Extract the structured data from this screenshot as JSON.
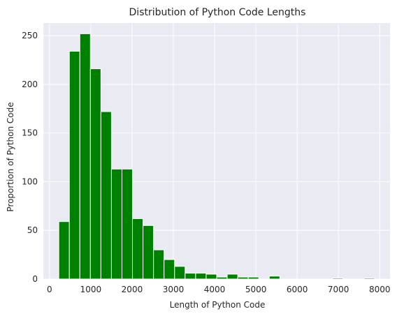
{
  "chart_data": {
    "type": "bar",
    "title": "Distribution of Python Code Lengths",
    "xlabel": "Length of Python Code",
    "ylabel": "Proportion of Python Code",
    "xlim": [
      -150,
      8250
    ],
    "ylim": [
      0,
      263
    ],
    "x_ticks": [
      0,
      1000,
      2000,
      3000,
      4000,
      5000,
      6000,
      7000,
      8000
    ],
    "y_ticks": [
      0,
      50,
      100,
      150,
      200,
      250
    ],
    "grid": true,
    "bar_color": "#008000",
    "background_color": "#eaeaf2",
    "bins": [
      {
        "x0": 225,
        "x1": 480,
        "count": 59
      },
      {
        "x0": 480,
        "x1": 735,
        "count": 234
      },
      {
        "x0": 735,
        "x1": 990,
        "count": 252
      },
      {
        "x0": 990,
        "x1": 1245,
        "count": 216
      },
      {
        "x0": 1245,
        "x1": 1500,
        "count": 172
      },
      {
        "x0": 1500,
        "x1": 1755,
        "count": 113
      },
      {
        "x0": 1755,
        "x1": 2010,
        "count": 113
      },
      {
        "x0": 2010,
        "x1": 2265,
        "count": 62
      },
      {
        "x0": 2265,
        "x1": 2520,
        "count": 55
      },
      {
        "x0": 2520,
        "x1": 2775,
        "count": 30
      },
      {
        "x0": 2775,
        "x1": 3030,
        "count": 20
      },
      {
        "x0": 3030,
        "x1": 3285,
        "count": 13
      },
      {
        "x0": 3285,
        "x1": 3540,
        "count": 6
      },
      {
        "x0": 3540,
        "x1": 3795,
        "count": 6
      },
      {
        "x0": 3795,
        "x1": 4050,
        "count": 5
      },
      {
        "x0": 4050,
        "x1": 4305,
        "count": 2
      },
      {
        "x0": 4305,
        "x1": 4560,
        "count": 5
      },
      {
        "x0": 4560,
        "x1": 4815,
        "count": 2
      },
      {
        "x0": 4815,
        "x1": 5070,
        "count": 2
      },
      {
        "x0": 5325,
        "x1": 5580,
        "count": 3
      },
      {
        "x0": 6855,
        "x1": 7110,
        "count": 1
      },
      {
        "x0": 7620,
        "x1": 7875,
        "count": 1
      }
    ]
  }
}
